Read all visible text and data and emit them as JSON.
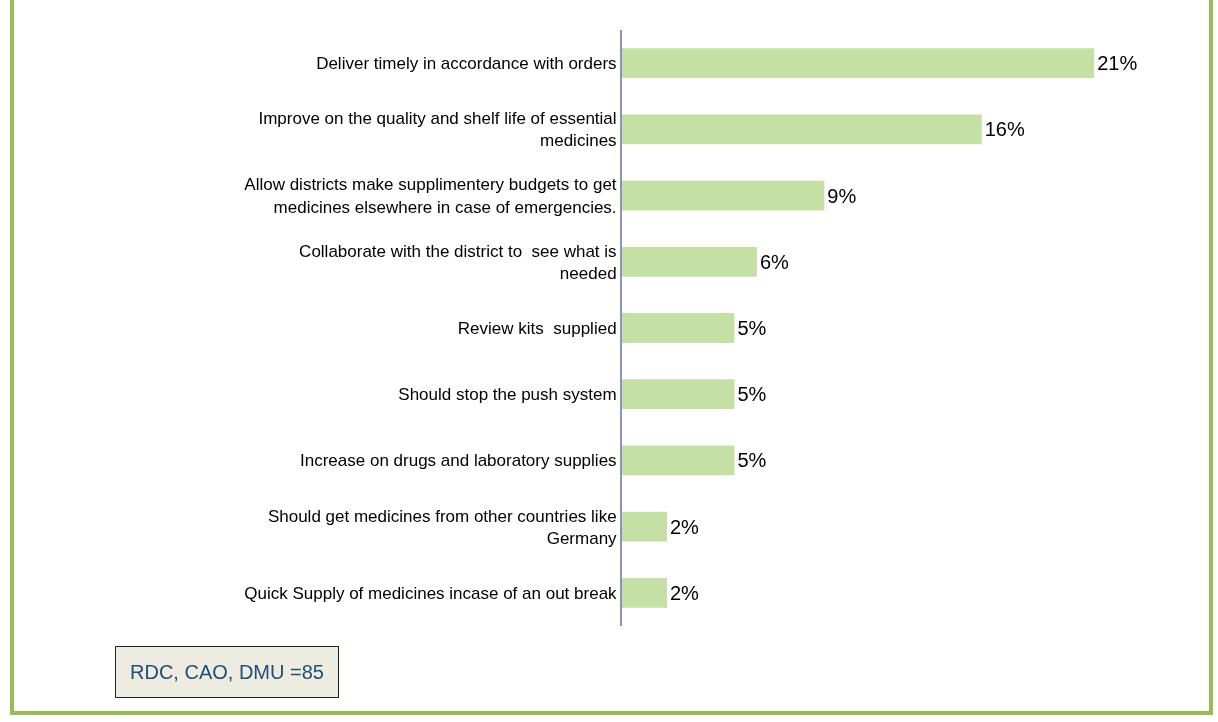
{
  "chart_data": {
    "type": "bar",
    "orientation": "horizontal",
    "categories": [
      "Deliver timely in accordance with orders",
      "Improve on the quality and shelf life of essential medicines",
      "Allow districts make supplimentery budgets to get medicines elsewhere in case of emergencies.",
      "Collaborate with the district to  see what is needed",
      "Review kits  supplied",
      "Should stop the push system",
      "Increase on drugs and laboratory supplies",
      "Should get medicines from other countries like Germany",
      "Quick Supply of medicines incase of an out break"
    ],
    "values": [
      21,
      16,
      9,
      6,
      5,
      5,
      5,
      2,
      2
    ],
    "value_labels": [
      "21%",
      "16%",
      "9%",
      "6%",
      "5%",
      "5%",
      "5%",
      "2%",
      "2%"
    ],
    "color": "#c5e0a5",
    "annotations": [
      "RDC, CAO, DMU =85"
    ]
  }
}
